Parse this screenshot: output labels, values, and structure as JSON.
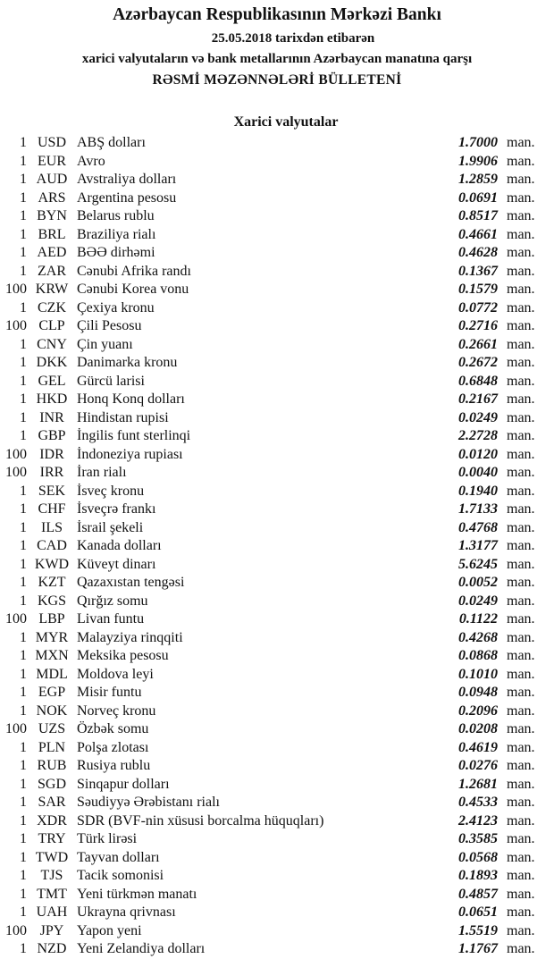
{
  "header": {
    "bank": "Azərbaycan Respublikasının Mərkəzi Bankı",
    "date_line": "25.05.2018  tarixdən etibarən",
    "subtitle": "xarici valyutaların və bank metallarının Azərbaycan manatına qarşı",
    "title": "RƏSMİ MƏZƏNNƏLƏRİ BÜLLETENİ"
  },
  "section_title": "Xarici valyutalar",
  "unit_label": "man.",
  "rows": [
    {
      "qty": "1",
      "code": "USD",
      "name": "ABŞ dolları",
      "rate": "1.7000"
    },
    {
      "qty": "1",
      "code": "EUR",
      "name": "Avro",
      "rate": "1.9906"
    },
    {
      "qty": "1",
      "code": "AUD",
      "name": "Avstraliya dolları",
      "rate": "1.2859"
    },
    {
      "qty": "1",
      "code": "ARS",
      "name": "Argentina pesosu",
      "rate": "0.0691"
    },
    {
      "qty": "1",
      "code": "BYN",
      "name": "Belarus rublu",
      "rate": "0.8517"
    },
    {
      "qty": "1",
      "code": "BRL",
      "name": "Braziliya rialı",
      "rate": "0.4661"
    },
    {
      "qty": "1",
      "code": "AED",
      "name": "BƏƏ dirhəmi",
      "rate": "0.4628"
    },
    {
      "qty": "1",
      "code": "ZAR",
      "name": "Cənubi Afrika randı",
      "rate": "0.1367"
    },
    {
      "qty": "100",
      "code": "KRW",
      "name": "Cənubi Korea vonu",
      "rate": "0.1579"
    },
    {
      "qty": "1",
      "code": "CZK",
      "name": "Çexiya kronu",
      "rate": "0.0772"
    },
    {
      "qty": "100",
      "code": "CLP",
      "name": "Çili Pesosu",
      "rate": "0.2716"
    },
    {
      "qty": "1",
      "code": "CNY",
      "name": "Çin yuanı",
      "rate": "0.2661"
    },
    {
      "qty": "1",
      "code": "DKK",
      "name": "Danimarka kronu",
      "rate": "0.2672"
    },
    {
      "qty": "1",
      "code": "GEL",
      "name": "Gürcü larisi",
      "rate": "0.6848"
    },
    {
      "qty": "1",
      "code": "HKD",
      "name": "Honq Konq dolları",
      "rate": "0.2167"
    },
    {
      "qty": "1",
      "code": "INR",
      "name": "Hindistan rupisi",
      "rate": "0.0249"
    },
    {
      "qty": "1",
      "code": "GBP",
      "name": "İngilis funt sterlinqi",
      "rate": "2.2728"
    },
    {
      "qty": "100",
      "code": "IDR",
      "name": "İndoneziya rupiası",
      "rate": "0.0120"
    },
    {
      "qty": "100",
      "code": "IRR",
      "name": "İran rialı",
      "rate": "0.0040"
    },
    {
      "qty": "1",
      "code": "SEK",
      "name": "İsveç kronu",
      "rate": "0.1940"
    },
    {
      "qty": "1",
      "code": "CHF",
      "name": "İsveçrə frankı",
      "rate": "1.7133"
    },
    {
      "qty": "1",
      "code": "ILS",
      "name": "İsrail şekeli",
      "rate": "0.4768"
    },
    {
      "qty": "1",
      "code": "CAD",
      "name": "Kanada dolları",
      "rate": "1.3177"
    },
    {
      "qty": "1",
      "code": "KWD",
      "name": "Küveyt dinarı",
      "rate": "5.6245"
    },
    {
      "qty": "1",
      "code": "KZT",
      "name": "Qazaxıstan tengəsi",
      "rate": "0.0052"
    },
    {
      "qty": "1",
      "code": "KGS",
      "name": "Qırğız somu",
      "rate": "0.0249"
    },
    {
      "qty": "100",
      "code": "LBP",
      "name": "Livan funtu",
      "rate": "0.1122"
    },
    {
      "qty": "1",
      "code": "MYR",
      "name": "Malayziya rinqqiti",
      "rate": "0.4268"
    },
    {
      "qty": "1",
      "code": "MXN",
      "name": "Meksika pesosu",
      "rate": "0.0868"
    },
    {
      "qty": "1",
      "code": "MDL",
      "name": "Moldova leyi",
      "rate": "0.1010"
    },
    {
      "qty": "1",
      "code": "EGP",
      "name": "Misir funtu",
      "rate": "0.0948"
    },
    {
      "qty": "1",
      "code": "NOK",
      "name": "Norveç kronu",
      "rate": "0.2096"
    },
    {
      "qty": "100",
      "code": "UZS",
      "name": "Özbək somu",
      "rate": "0.0208"
    },
    {
      "qty": "1",
      "code": "PLN",
      "name": "Polşa zlotası",
      "rate": "0.4619"
    },
    {
      "qty": "1",
      "code": "RUB",
      "name": "Rusiya rublu",
      "rate": "0.0276"
    },
    {
      "qty": "1",
      "code": "SGD",
      "name": "Sinqapur dolları",
      "rate": "1.2681"
    },
    {
      "qty": "1",
      "code": "SAR",
      "name": "Səudiyyə Ərəbistanı rialı",
      "rate": "0.4533"
    },
    {
      "qty": "1",
      "code": "XDR",
      "name": "SDR (BVF-nin xüsusi borcalma hüquqları)",
      "rate": "2.4123"
    },
    {
      "qty": "1",
      "code": "TRY",
      "name": "Türk lirəsi",
      "rate": "0.3585"
    },
    {
      "qty": "1",
      "code": "TWD",
      "name": "Tayvan dolları",
      "rate": "0.0568"
    },
    {
      "qty": "1",
      "code": "TJS",
      "name": "Tacik somonisi",
      "rate": "0.1893"
    },
    {
      "qty": "1",
      "code": "TMT",
      "name": "Yeni türkmən manatı",
      "rate": "0.4857"
    },
    {
      "qty": "1",
      "code": "UAH",
      "name": "Ukrayna qrivnası",
      "rate": "0.0651"
    },
    {
      "qty": "100",
      "code": "JPY",
      "name": "Yapon yeni",
      "rate": "1.5519"
    },
    {
      "qty": "1",
      "code": "NZD",
      "name": "Yeni Zelandiya dolları",
      "rate": "1.1767"
    }
  ]
}
